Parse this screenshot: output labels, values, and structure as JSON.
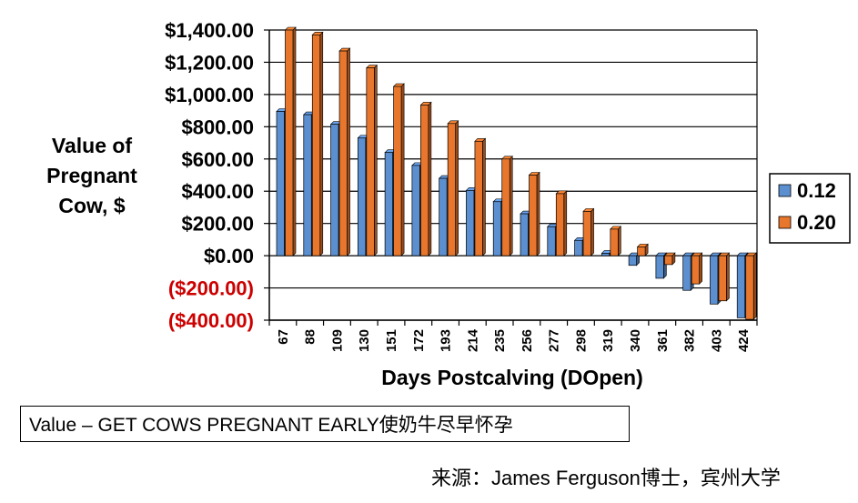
{
  "chart_data": {
    "type": "bar",
    "ylabel_lines": [
      "Value of",
      "Pregnant",
      "Cow, $"
    ],
    "xlabel": "Days Postcalving (DOpen)",
    "categories": [
      "67",
      "88",
      "109",
      "130",
      "151",
      "172",
      "193",
      "214",
      "235",
      "256",
      "277",
      "298",
      "319",
      "340",
      "361",
      "382",
      "403",
      "424"
    ],
    "ylim": [
      -400,
      1400
    ],
    "yticks": [
      {
        "value": 1400,
        "label": "$1,400.00"
      },
      {
        "value": 1200,
        "label": "$1,200.00"
      },
      {
        "value": 1000,
        "label": "$1,000.00"
      },
      {
        "value": 800,
        "label": "$800.00"
      },
      {
        "value": 600,
        "label": "$600.00"
      },
      {
        "value": 400,
        "label": "$400.00"
      },
      {
        "value": 200,
        "label": "$200.00"
      },
      {
        "value": 0,
        "label": "$0.00"
      },
      {
        "value": -200,
        "label": "($200.00)"
      },
      {
        "value": -400,
        "label": "($400.00)"
      }
    ],
    "grid": true,
    "legend_position": "right",
    "series": [
      {
        "name": "0.12",
        "color": "#5b8fd0",
        "values": [
          895,
          875,
          815,
          730,
          640,
          560,
          480,
          405,
          335,
          260,
          180,
          95,
          15,
          -60,
          -140,
          -215,
          -300,
          -385
        ]
      },
      {
        "name": "0.20",
        "color": "#e8762c",
        "values": [
          1400,
          1370,
          1270,
          1165,
          1050,
          935,
          820,
          710,
          600,
          500,
          385,
          275,
          165,
          55,
          -55,
          -175,
          -280,
          -395
        ]
      }
    ]
  },
  "caption": "Value – GET COWS PREGNANT EARLY使奶牛尽早怀孕",
  "source": "来源：James Ferguson博士，宾州大学"
}
